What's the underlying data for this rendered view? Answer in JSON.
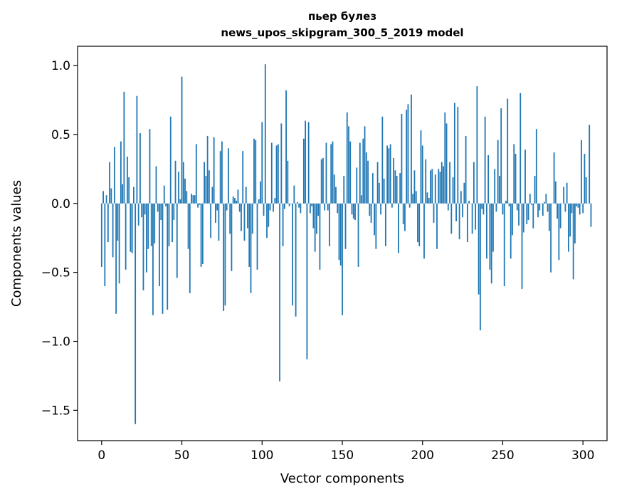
{
  "chart_data": {
    "type": "bar",
    "title_line1": "пьер булез",
    "title_line2": "news_upos_skipgram_300_5_2019 model",
    "xlabel": "Vector components",
    "ylabel": "Components values",
    "xlim": [
      -15,
      315
    ],
    "ylim": [
      -1.72,
      1.14
    ],
    "xticks": [
      0,
      50,
      100,
      150,
      200,
      250,
      300
    ],
    "xtick_labels": [
      "0",
      "50",
      "100",
      "150",
      "200",
      "250",
      "300"
    ],
    "yticks": [
      -1.5,
      -1.0,
      -0.5,
      0.0,
      0.5,
      1.0
    ],
    "ytick_labels": [
      "−1.5",
      "−1.0",
      "−0.5",
      "0.0",
      "0.5",
      "1.0"
    ],
    "bar_color": "#1f77b4",
    "values": [
      -0.46,
      0.09,
      -0.6,
      0.06,
      -0.28,
      0.3,
      0.11,
      -0.39,
      0.41,
      -0.8,
      -0.27,
      -0.58,
      0.45,
      0.14,
      0.81,
      -0.48,
      0.34,
      0.19,
      -0.35,
      -0.36,
      0.12,
      -1.6,
      0.78,
      -0.16,
      0.51,
      -0.1,
      -0.63,
      -0.08,
      -0.5,
      -0.33,
      0.54,
      -0.31,
      -0.81,
      -0.29,
      0.27,
      -0.06,
      -0.6,
      -0.12,
      -0.8,
      0.13,
      -0.02,
      -0.77,
      -0.31,
      0.63,
      -0.28,
      -0.12,
      0.31,
      -0.54,
      0.23,
      0.03,
      0.92,
      0.3,
      0.18,
      0.09,
      -0.33,
      -0.65,
      0.07,
      0.06,
      0.06,
      0.43,
      -0.03,
      -0.01,
      -0.46,
      -0.44,
      0.3,
      0.2,
      0.49,
      0.24,
      -0.25,
      0.12,
      0.48,
      -0.14,
      -0.05,
      -0.27,
      0.38,
      0.45,
      -0.78,
      -0.74,
      -0.05,
      0.4,
      -0.22,
      -0.49,
      0.05,
      0.04,
      0.02,
      0.1,
      -0.06,
      -0.2,
      0.38,
      -0.27,
      0.12,
      -0.18,
      -0.46,
      -0.65,
      -0.22,
      0.47,
      0.46,
      -0.48,
      0.03,
      0.16,
      0.59,
      -0.09,
      1.01,
      -0.25,
      -0.17,
      -0.05,
      0.44,
      -0.06,
      0.04,
      0.42,
      0.43,
      -1.29,
      0.58,
      -0.31,
      -0.04,
      0.82,
      0.31,
      -0.02,
      0.0,
      -0.74,
      0.13,
      -0.82,
      0.01,
      -0.03,
      -0.07,
      0.0,
      0.47,
      0.6,
      -1.13,
      0.59,
      -0.07,
      -0.02,
      -0.18,
      -0.35,
      -0.22,
      -0.09,
      -0.48,
      0.32,
      0.33,
      -0.05,
      0.44,
      -0.05,
      -0.31,
      0.43,
      0.45,
      0.21,
      0.12,
      -0.07,
      -0.41,
      -0.45,
      -0.81,
      0.2,
      -0.33,
      0.66,
      0.56,
      0.45,
      -0.08,
      -0.11,
      -0.12,
      0.26,
      -0.46,
      0.44,
      0.06,
      0.47,
      0.56,
      0.37,
      0.31,
      -0.09,
      -0.14,
      0.22,
      -0.23,
      -0.33,
      0.3,
      0.15,
      -0.08,
      0.63,
      0.18,
      -0.31,
      0.42,
      0.4,
      0.43,
      -0.03,
      0.33,
      0.24,
      0.2,
      -0.36,
      0.22,
      0.65,
      -0.15,
      -0.2,
      0.68,
      0.72,
      -0.03,
      0.79,
      0.07,
      0.24,
      0.09,
      -0.28,
      -0.31,
      0.53,
      0.42,
      -0.4,
      0.32,
      0.08,
      0.04,
      0.24,
      0.25,
      -0.14,
      0.21,
      -0.33,
      0.25,
      0.23,
      0.3,
      0.27,
      0.66,
      0.58,
      -0.05,
      0.3,
      -0.22,
      0.19,
      0.73,
      -0.13,
      0.7,
      -0.26,
      0.09,
      -0.1,
      0.15,
      0.49,
      -0.28,
      0.02,
      0.0,
      -0.22,
      0.3,
      -0.19,
      0.85,
      -0.66,
      -0.92,
      -0.04,
      -0.08,
      0.63,
      -0.4,
      0.35,
      -0.48,
      -0.58,
      -0.35,
      0.25,
      -0.06,
      0.46,
      0.2,
      0.69,
      -0.08,
      -0.6,
      0.02,
      0.76,
      -0.02,
      -0.4,
      -0.23,
      0.43,
      0.36,
      -0.05,
      -0.16,
      0.8,
      -0.62,
      -0.21,
      0.39,
      -0.15,
      -0.12,
      0.07,
      -0.01,
      -0.18,
      0.2,
      0.54,
      -0.1,
      -0.05,
      0.0,
      -0.09,
      0.01,
      0.07,
      -0.06,
      -0.2,
      -0.5,
      0.0,
      0.37,
      0.16,
      -0.11,
      -0.41,
      -0.18,
      0.0,
      0.12,
      -0.06,
      0.15,
      -0.35,
      -0.24,
      -0.07,
      -0.55,
      -0.29,
      -0.02,
      -0.03,
      -0.08,
      0.46,
      -0.07,
      0.36,
      0.19,
      0.0,
      0.57,
      -0.17
    ]
  }
}
